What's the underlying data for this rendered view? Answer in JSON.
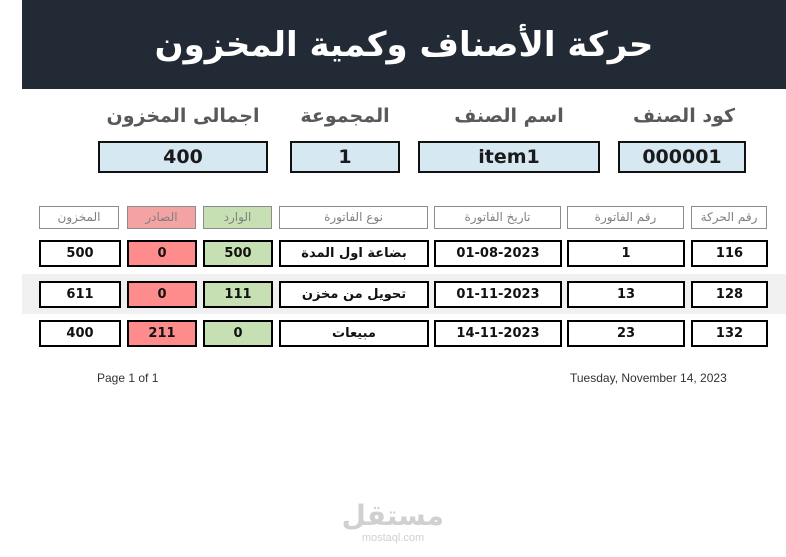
{
  "title": "حركة الأصناف وكمية المخزون",
  "header": {
    "labels": {
      "item_code": "كود الصنف",
      "item_name": "اسم الصنف",
      "group": "المجموعة",
      "total_stock": "اجمالى المخزون"
    },
    "values": {
      "item_code": "000001",
      "item_name": "item1",
      "group": "1",
      "total_stock": "400"
    }
  },
  "table": {
    "columns": {
      "movement_no": "رقم الحركة",
      "invoice_no": "رقم الفاتورة",
      "invoice_date": "تاريخ الفاتورة",
      "invoice_type": "نوع الفاتورة",
      "incoming": "الوارد",
      "outgoing": "الصادر",
      "stock": "المخزون"
    },
    "rows": [
      {
        "movement_no": "116",
        "invoice_no": "1",
        "invoice_date": "01-08-2023",
        "invoice_type": "بضاعة اول المدة",
        "incoming": "500",
        "outgoing": "0",
        "stock": "500"
      },
      {
        "movement_no": "128",
        "invoice_no": "13",
        "invoice_date": "01-11-2023",
        "invoice_type": "تحويل من مخزن",
        "incoming": "111",
        "outgoing": "0",
        "stock": "611"
      },
      {
        "movement_no": "132",
        "invoice_no": "23",
        "invoice_date": "14-11-2023",
        "invoice_type": "مبيعات",
        "incoming": "0",
        "outgoing": "211",
        "stock": "400"
      }
    ]
  },
  "footer": {
    "page": "Page 1 of 1",
    "date": "Tuesday, November 14, 2023"
  },
  "watermark": {
    "arabic": "مستقل",
    "latin": "mostaql.com"
  },
  "colors": {
    "banner": "#222a35",
    "header_box": "#d6e9f2",
    "incoming": "#c6e0b4",
    "outgoing": "#ff8c8c"
  }
}
